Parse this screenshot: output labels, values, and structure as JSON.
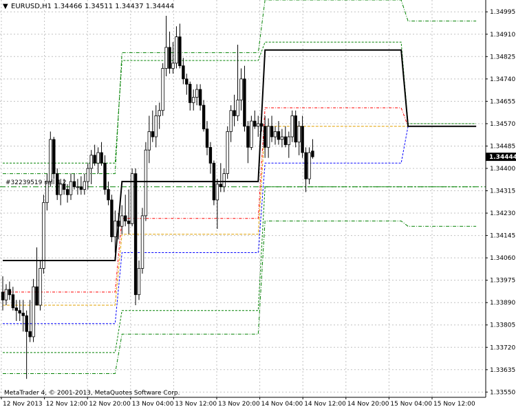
{
  "window": {
    "title": "EURUSD,H1  1.34466 1.34511 1.34437 1.34444"
  },
  "footer": {
    "copyright": "MetaTrader 4, © 2001-2013, MetaQuotes Software Corp."
  },
  "order_label": "#32239519 sell 4.2",
  "last_price_label": "1.34444",
  "colors": {
    "background": "#ffffff",
    "grid": "#c0c0c0",
    "candle": "#000000",
    "bull_body": "#ffffff",
    "bear_body": "#000000",
    "trend_line": "#000000",
    "outer_band": "#008000",
    "red_level": "#ff0000",
    "orange_level": "#e0a000",
    "blue_level": "#0000ff",
    "order_line": "#008000",
    "price_tag_bg": "#000000"
  },
  "chart_data": {
    "type": "candlestick",
    "symbol": "EURUSD",
    "timeframe": "H1",
    "y_axis_ticks": [
      "1.34995",
      "1.34910",
      "1.34825",
      "1.34740",
      "1.34655",
      "1.34570",
      "1.34485",
      "1.34400",
      "1.34315",
      "1.34230",
      "1.34145",
      "1.34060",
      "1.33975",
      "1.33890",
      "1.33805",
      "1.33720",
      "1.33635",
      "1.33550"
    ],
    "x_axis_ticks": [
      "12 Nov 2013",
      "12 Nov 12:00",
      "12 Nov 20:00",
      "13 Nov 04:00",
      "13 Nov 12:00",
      "13 Nov 20:00",
      "14 Nov 04:00",
      "14 Nov 12:00",
      "14 Nov 20:00",
      "15 Nov 04:00",
      "15 Nov 12:00"
    ],
    "ylim": [
      1.3353,
      1.3504
    ],
    "candles": [
      {
        "o": 1.3393,
        "h": 1.3399,
        "l": 1.3386,
        "c": 1.339
      },
      {
        "o": 1.339,
        "h": 1.3396,
        "l": 1.3388,
        "c": 1.3394
      },
      {
        "o": 1.3394,
        "h": 1.3397,
        "l": 1.339,
        "c": 1.3392
      },
      {
        "o": 1.3392,
        "h": 1.3395,
        "l": 1.3386,
        "c": 1.3387
      },
      {
        "o": 1.3387,
        "h": 1.339,
        "l": 1.3382,
        "c": 1.3386
      },
      {
        "o": 1.3386,
        "h": 1.339,
        "l": 1.3382,
        "c": 1.3385
      },
      {
        "o": 1.3385,
        "h": 1.339,
        "l": 1.3378,
        "c": 1.3384
      },
      {
        "o": 1.3384,
        "h": 1.3386,
        "l": 1.336,
        "c": 1.3378
      },
      {
        "o": 1.3378,
        "h": 1.339,
        "l": 1.3374,
        "c": 1.3376
      },
      {
        "o": 1.3376,
        "h": 1.3398,
        "l": 1.3374,
        "c": 1.3395
      },
      {
        "o": 1.3395,
        "h": 1.341,
        "l": 1.3388,
        "c": 1.3388
      },
      {
        "o": 1.3388,
        "h": 1.3405,
        "l": 1.3386,
        "c": 1.3402
      },
      {
        "o": 1.3402,
        "h": 1.343,
        "l": 1.34,
        "c": 1.3427
      },
      {
        "o": 1.3427,
        "h": 1.3438,
        "l": 1.3424,
        "c": 1.3435
      },
      {
        "o": 1.3435,
        "h": 1.3454,
        "l": 1.3433,
        "c": 1.3451
      },
      {
        "o": 1.3451,
        "h": 1.3452,
        "l": 1.3436,
        "c": 1.3438
      },
      {
        "o": 1.3438,
        "h": 1.344,
        "l": 1.3428,
        "c": 1.343
      },
      {
        "o": 1.343,
        "h": 1.3436,
        "l": 1.3426,
        "c": 1.3434
      },
      {
        "o": 1.3434,
        "h": 1.3436,
        "l": 1.343,
        "c": 1.3432
      },
      {
        "o": 1.3432,
        "h": 1.3434,
        "l": 1.3427,
        "c": 1.343
      },
      {
        "o": 1.343,
        "h": 1.3438,
        "l": 1.3428,
        "c": 1.3435
      },
      {
        "o": 1.3435,
        "h": 1.3438,
        "l": 1.3432,
        "c": 1.3433
      },
      {
        "o": 1.3433,
        "h": 1.3436,
        "l": 1.343,
        "c": 1.3433
      },
      {
        "o": 1.3433,
        "h": 1.3437,
        "l": 1.343,
        "c": 1.3432
      },
      {
        "o": 1.3432,
        "h": 1.3438,
        "l": 1.343,
        "c": 1.3435
      },
      {
        "o": 1.3435,
        "h": 1.3442,
        "l": 1.3432,
        "c": 1.344
      },
      {
        "o": 1.344,
        "h": 1.3447,
        "l": 1.3434,
        "c": 1.3445
      },
      {
        "o": 1.3445,
        "h": 1.3449,
        "l": 1.3441,
        "c": 1.3442
      },
      {
        "o": 1.3442,
        "h": 1.3448,
        "l": 1.3438,
        "c": 1.3446
      },
      {
        "o": 1.3446,
        "h": 1.345,
        "l": 1.3441,
        "c": 1.3442
      },
      {
        "o": 1.3442,
        "h": 1.3445,
        "l": 1.343,
        "c": 1.3432
      },
      {
        "o": 1.3432,
        "h": 1.3435,
        "l": 1.3426,
        "c": 1.3428
      },
      {
        "o": 1.3428,
        "h": 1.343,
        "l": 1.3412,
        "c": 1.3414
      },
      {
        "o": 1.3414,
        "h": 1.3424,
        "l": 1.3408,
        "c": 1.342
      },
      {
        "o": 1.342,
        "h": 1.3423,
        "l": 1.3413,
        "c": 1.3418
      },
      {
        "o": 1.3418,
        "h": 1.3426,
        "l": 1.3415,
        "c": 1.3422
      },
      {
        "o": 1.3422,
        "h": 1.343,
        "l": 1.3418,
        "c": 1.342
      },
      {
        "o": 1.342,
        "h": 1.3432,
        "l": 1.3415,
        "c": 1.3419
      },
      {
        "o": 1.3419,
        "h": 1.344,
        "l": 1.3418,
        "c": 1.3438
      },
      {
        "o": 1.3438,
        "h": 1.344,
        "l": 1.3388,
        "c": 1.3392
      },
      {
        "o": 1.3392,
        "h": 1.3405,
        "l": 1.339,
        "c": 1.3402
      },
      {
        "o": 1.3402,
        "h": 1.3425,
        "l": 1.34,
        "c": 1.3422
      },
      {
        "o": 1.3422,
        "h": 1.345,
        "l": 1.342,
        "c": 1.3447
      },
      {
        "o": 1.3447,
        "h": 1.346,
        "l": 1.3442,
        "c": 1.3454
      },
      {
        "o": 1.3454,
        "h": 1.3462,
        "l": 1.345,
        "c": 1.3452
      },
      {
        "o": 1.3452,
        "h": 1.3464,
        "l": 1.3448,
        "c": 1.346
      },
      {
        "o": 1.346,
        "h": 1.3465,
        "l": 1.3455,
        "c": 1.3462
      },
      {
        "o": 1.3462,
        "h": 1.348,
        "l": 1.346,
        "c": 1.3478
      },
      {
        "o": 1.3478,
        "h": 1.3498,
        "l": 1.3475,
        "c": 1.3486
      },
      {
        "o": 1.3486,
        "h": 1.3492,
        "l": 1.3476,
        "c": 1.3478
      },
      {
        "o": 1.3478,
        "h": 1.3488,
        "l": 1.3476,
        "c": 1.348
      },
      {
        "o": 1.348,
        "h": 1.3494,
        "l": 1.3478,
        "c": 1.349
      },
      {
        "o": 1.349,
        "h": 1.3495,
        "l": 1.3478,
        "c": 1.3479
      },
      {
        "o": 1.3479,
        "h": 1.3482,
        "l": 1.3472,
        "c": 1.3474
      },
      {
        "o": 1.3474,
        "h": 1.3476,
        "l": 1.3468,
        "c": 1.3472
      },
      {
        "o": 1.3472,
        "h": 1.3473,
        "l": 1.3462,
        "c": 1.3465
      },
      {
        "o": 1.3465,
        "h": 1.347,
        "l": 1.3462,
        "c": 1.3467
      },
      {
        "o": 1.3467,
        "h": 1.3472,
        "l": 1.3464,
        "c": 1.347
      },
      {
        "o": 1.347,
        "h": 1.3472,
        "l": 1.3462,
        "c": 1.3464
      },
      {
        "o": 1.3464,
        "h": 1.3466,
        "l": 1.3454,
        "c": 1.3455
      },
      {
        "o": 1.3455,
        "h": 1.3458,
        "l": 1.3445,
        "c": 1.3448
      },
      {
        "o": 1.3448,
        "h": 1.345,
        "l": 1.3438,
        "c": 1.3442
      },
      {
        "o": 1.3442,
        "h": 1.3443,
        "l": 1.3426,
        "c": 1.3428
      },
      {
        "o": 1.3428,
        "h": 1.3436,
        "l": 1.3417,
        "c": 1.3434
      },
      {
        "o": 1.3434,
        "h": 1.3442,
        "l": 1.3431,
        "c": 1.3433
      },
      {
        "o": 1.3433,
        "h": 1.344,
        "l": 1.3431,
        "c": 1.3438
      },
      {
        "o": 1.3438,
        "h": 1.3456,
        "l": 1.3436,
        "c": 1.3454
      },
      {
        "o": 1.3454,
        "h": 1.3464,
        "l": 1.345,
        "c": 1.3462
      },
      {
        "o": 1.3462,
        "h": 1.3468,
        "l": 1.3456,
        "c": 1.346
      },
      {
        "o": 1.346,
        "h": 1.3487,
        "l": 1.3458,
        "c": 1.3466
      },
      {
        "o": 1.3466,
        "h": 1.3478,
        "l": 1.3462,
        "c": 1.3474
      },
      {
        "o": 1.3474,
        "h": 1.3479,
        "l": 1.3454,
        "c": 1.3456
      },
      {
        "o": 1.3456,
        "h": 1.3458,
        "l": 1.3442,
        "c": 1.3448
      },
      {
        "o": 1.3448,
        "h": 1.346,
        "l": 1.3447,
        "c": 1.3458
      },
      {
        "o": 1.3458,
        "h": 1.3462,
        "l": 1.3455,
        "c": 1.3456
      },
      {
        "o": 1.3456,
        "h": 1.346,
        "l": 1.3452,
        "c": 1.3457
      },
      {
        "o": 1.3457,
        "h": 1.3462,
        "l": 1.3454,
        "c": 1.3456
      },
      {
        "o": 1.3456,
        "h": 1.346,
        "l": 1.3444,
        "c": 1.3448
      },
      {
        "o": 1.3448,
        "h": 1.3459,
        "l": 1.3444,
        "c": 1.3456
      },
      {
        "o": 1.3456,
        "h": 1.346,
        "l": 1.345,
        "c": 1.3452
      },
      {
        "o": 1.3452,
        "h": 1.3456,
        "l": 1.3449,
        "c": 1.3454
      },
      {
        "o": 1.3454,
        "h": 1.3458,
        "l": 1.3449,
        "c": 1.3451
      },
      {
        "o": 1.3451,
        "h": 1.3455,
        "l": 1.3448,
        "c": 1.3452
      },
      {
        "o": 1.3452,
        "h": 1.3456,
        "l": 1.3448,
        "c": 1.3449
      },
      {
        "o": 1.3449,
        "h": 1.3454,
        "l": 1.3444,
        "c": 1.3452
      },
      {
        "o": 1.3452,
        "h": 1.3462,
        "l": 1.345,
        "c": 1.346
      },
      {
        "o": 1.346,
        "h": 1.3462,
        "l": 1.3448,
        "c": 1.345
      },
      {
        "o": 1.345,
        "h": 1.3458,
        "l": 1.3445,
        "c": 1.3456
      },
      {
        "o": 1.3456,
        "h": 1.346,
        "l": 1.3444,
        "c": 1.3446
      },
      {
        "o": 1.3446,
        "h": 1.3448,
        "l": 1.3431,
        "c": 1.3436
      },
      {
        "o": 1.3436,
        "h": 1.3448,
        "l": 1.3434,
        "c": 1.3446
      },
      {
        "o": 1.34466,
        "h": 1.34511,
        "l": 1.34437,
        "c": 1.34444
      }
    ],
    "trend_line": [
      [
        0,
        1.3405
      ],
      [
        33,
        1.3405
      ],
      [
        35,
        1.3435
      ],
      [
        75,
        1.3435
      ],
      [
        77,
        1.3485
      ],
      [
        117,
        1.3485
      ],
      [
        119,
        1.3456
      ],
      [
        139,
        1.3456
      ]
    ],
    "bands": {
      "outer_upper": [
        [
          0,
          1.3438
        ],
        [
          33,
          1.3438
        ],
        [
          35,
          1.3484
        ],
        [
          75,
          1.3484
        ],
        [
          77,
          1.3504
        ],
        [
          117,
          1.3504
        ],
        [
          119,
          1.3496
        ],
        [
          139,
          1.3496
        ]
      ],
      "green_inner_upper": [
        [
          0,
          1.3442
        ],
        [
          33,
          1.3442
        ],
        [
          35,
          1.3481
        ],
        [
          75,
          1.3481
        ],
        [
          77,
          1.3488
        ],
        [
          117,
          1.3488
        ],
        [
          119,
          1.3457
        ],
        [
          139,
          1.3457
        ]
      ],
      "red": [
        [
          0,
          1.3393
        ],
        [
          33,
          1.3393
        ],
        [
          35,
          1.3421
        ],
        [
          75,
          1.3421
        ],
        [
          77,
          1.3463
        ],
        [
          117,
          1.3463
        ],
        [
          119,
          1.3456
        ],
        [
          139,
          1.3456
        ]
      ],
      "orange": [
        [
          0,
          1.3388
        ],
        [
          33,
          1.3388
        ],
        [
          35,
          1.3415
        ],
        [
          75,
          1.3415
        ],
        [
          77,
          1.3456
        ],
        [
          117,
          1.3456
        ],
        [
          119,
          1.3456
        ],
        [
          139,
          1.3456
        ]
      ],
      "blue": [
        [
          0,
          1.3381
        ],
        [
          33,
          1.3381
        ],
        [
          35,
          1.3408
        ],
        [
          75,
          1.3408
        ],
        [
          77,
          1.3442
        ],
        [
          117,
          1.3442
        ],
        [
          119,
          1.3456
        ],
        [
          139,
          1.3456
        ]
      ],
      "green_inner_lower": [
        [
          0,
          1.337
        ],
        [
          33,
          1.337
        ],
        [
          35,
          1.3386
        ],
        [
          75,
          1.3386
        ],
        [
          77,
          1.3433
        ],
        [
          117,
          1.3433
        ],
        [
          119,
          1.3433
        ],
        [
          139,
          1.3433
        ]
      ],
      "outer_lower": [
        [
          0,
          1.3362
        ],
        [
          33,
          1.3362
        ],
        [
          35,
          1.3377
        ],
        [
          75,
          1.3377
        ],
        [
          77,
          1.342
        ],
        [
          117,
          1.342
        ],
        [
          119,
          1.3418
        ],
        [
          139,
          1.3418
        ]
      ]
    },
    "order_line_price": 1.3433,
    "last_price": 1.34444,
    "grid": true
  }
}
